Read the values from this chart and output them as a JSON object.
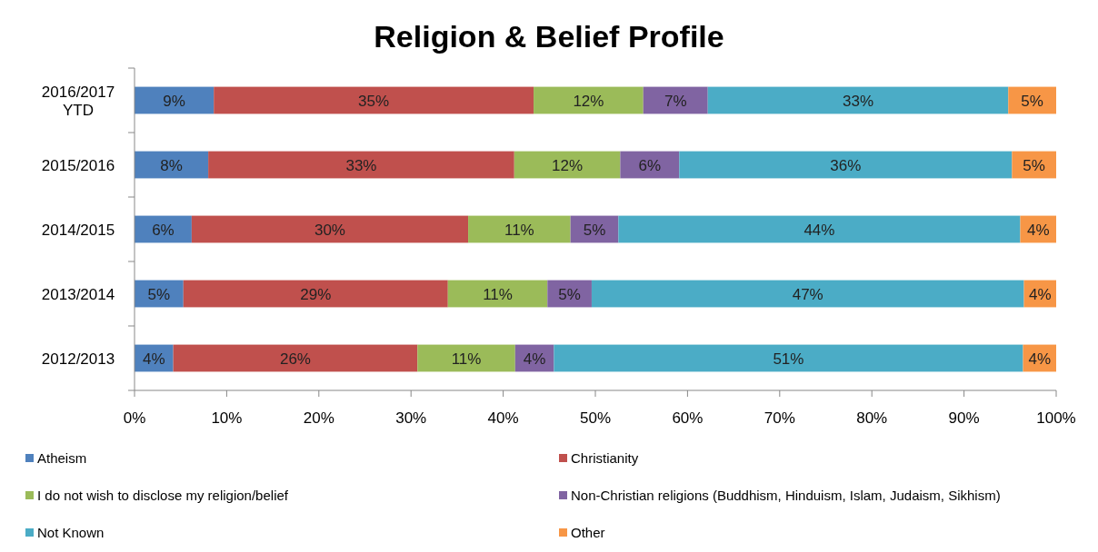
{
  "chart_data": {
    "type": "bar",
    "title": "Religion & Belief Profile",
    "orientation": "horizontal",
    "stacked": true,
    "categories": [
      "2016/2017\nYTD",
      "2015/2016",
      "2014/2015",
      "2013/2014",
      "2012/2013"
    ],
    "series": [
      {
        "name": "Atheism",
        "color": "#4f81bd",
        "values": [
          8.6,
          8.0,
          6.2,
          5.3,
          4.2
        ],
        "value_labels": [
          "9%",
          "8%",
          "6%",
          "5%",
          "4%"
        ]
      },
      {
        "name": "Christianity",
        "color": "#c0504d",
        "values": [
          34.7,
          33.2,
          30.0,
          28.7,
          26.5
        ],
        "value_labels": [
          "35%",
          "33%",
          "30%",
          "29%",
          "26%"
        ]
      },
      {
        "name": "I do not wish to disclose my religion/belief",
        "color": "#9bbb59",
        "values": [
          11.9,
          11.5,
          11.1,
          10.8,
          10.6
        ],
        "value_labels": [
          "12%",
          "12%",
          "11%",
          "11%",
          "11%"
        ]
      },
      {
        "name": "Non-Christian religions (Buddhism, Hinduism, Islam, Judaism, Sikhism)",
        "color": "#8064a2",
        "values": [
          7.0,
          6.4,
          5.2,
          4.8,
          4.2
        ],
        "value_labels": [
          "7%",
          "6%",
          "5%",
          "5%",
          "4%"
        ]
      },
      {
        "name": "Not Known",
        "color": "#4bacc6",
        "values": [
          32.6,
          36.1,
          43.6,
          46.9,
          50.9
        ],
        "value_labels": [
          "33%",
          "36%",
          "44%",
          "47%",
          "51%"
        ]
      },
      {
        "name": "Other",
        "color": "#f79646",
        "values": [
          5.2,
          4.8,
          3.9,
          3.5,
          3.6
        ],
        "value_labels": [
          "5%",
          "5%",
          "4%",
          "4%",
          "4%"
        ]
      }
    ],
    "xlim": [
      0,
      100
    ],
    "xticks": [
      {
        "value": 0,
        "label": "0%"
      },
      {
        "value": 10,
        "label": "10%"
      },
      {
        "value": 20,
        "label": "20%"
      },
      {
        "value": 30,
        "label": "30%"
      },
      {
        "value": 40,
        "label": "40%"
      },
      {
        "value": 50,
        "label": "50%"
      },
      {
        "value": 60,
        "label": "60%"
      },
      {
        "value": 70,
        "label": "70%"
      },
      {
        "value": 80,
        "label": "80%"
      },
      {
        "value": 90,
        "label": "90%"
      },
      {
        "value": 100,
        "label": "100%"
      }
    ],
    "legend": "bottom"
  }
}
